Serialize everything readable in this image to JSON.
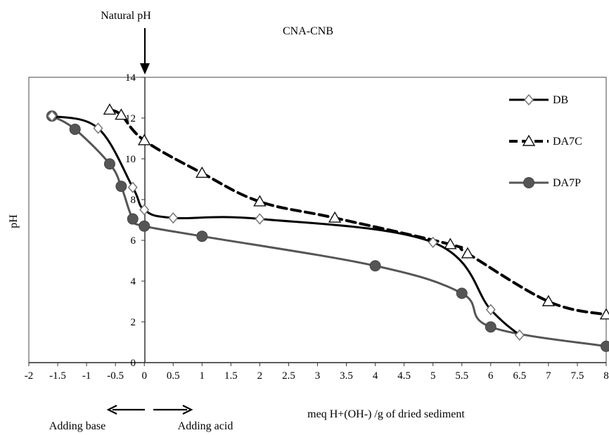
{
  "chart_data": {
    "type": "line",
    "title": "CNA-CNB",
    "xlabel": "meq H+(OH-) /g of dried sediment",
    "ylabel": "pH",
    "xlim": [
      -2,
      8
    ],
    "ylim": [
      0,
      14
    ],
    "x_ticks": [
      "-2",
      "-1.5",
      "-1",
      "-0.5",
      "0",
      "0.5",
      "1",
      "1.5",
      "2",
      "2.5",
      "3",
      "3.5",
      "4",
      "4.5",
      "5",
      "5.5",
      "6",
      "6.5",
      "7",
      "7.5",
      "8"
    ],
    "y_ticks": [
      "0",
      "2",
      "4",
      "6",
      "8",
      "10",
      "12",
      "14"
    ],
    "grid": false,
    "legend_position": "right",
    "series": [
      {
        "name": "DB",
        "line": "solid",
        "marker": "diamond",
        "color": "#000000",
        "points": [
          [
            -1.6,
            12.1
          ],
          [
            -0.8,
            11.5
          ],
          [
            -0.2,
            8.6
          ],
          [
            0,
            7.5
          ],
          [
            0.5,
            7.1
          ],
          [
            2,
            7.05
          ],
          [
            5,
            5.9
          ],
          [
            6,
            2.6
          ],
          [
            6.5,
            1.35
          ]
        ]
      },
      {
        "name": "DA7C",
        "line": "dashed",
        "marker": "triangle",
        "color": "#000000",
        "points": [
          [
            -0.6,
            12.4
          ],
          [
            -0.4,
            12.15
          ],
          [
            0,
            10.9
          ],
          [
            1,
            9.3
          ],
          [
            2,
            7.9
          ],
          [
            3.3,
            7.1
          ],
          [
            5.3,
            5.8
          ],
          [
            5.6,
            5.35
          ],
          [
            7,
            3.0
          ],
          [
            8,
            2.35
          ]
        ]
      },
      {
        "name": "DA7P",
        "line": "solid",
        "marker": "circle",
        "color": "#555555",
        "points": [
          [
            -1.6,
            12.1
          ],
          [
            -1.2,
            11.45
          ],
          [
            -0.6,
            9.75
          ],
          [
            -0.4,
            8.65
          ],
          [
            -0.2,
            7.05
          ],
          [
            0,
            6.7
          ],
          [
            1,
            6.2
          ],
          [
            4,
            4.75
          ],
          [
            5.5,
            3.4
          ],
          [
            6,
            1.75
          ],
          [
            8,
            0.8
          ]
        ]
      }
    ]
  },
  "annotations": {
    "natural_ph": "Natural pH",
    "adding_base": "Adding base",
    "adding_acid": "Adding acid"
  }
}
